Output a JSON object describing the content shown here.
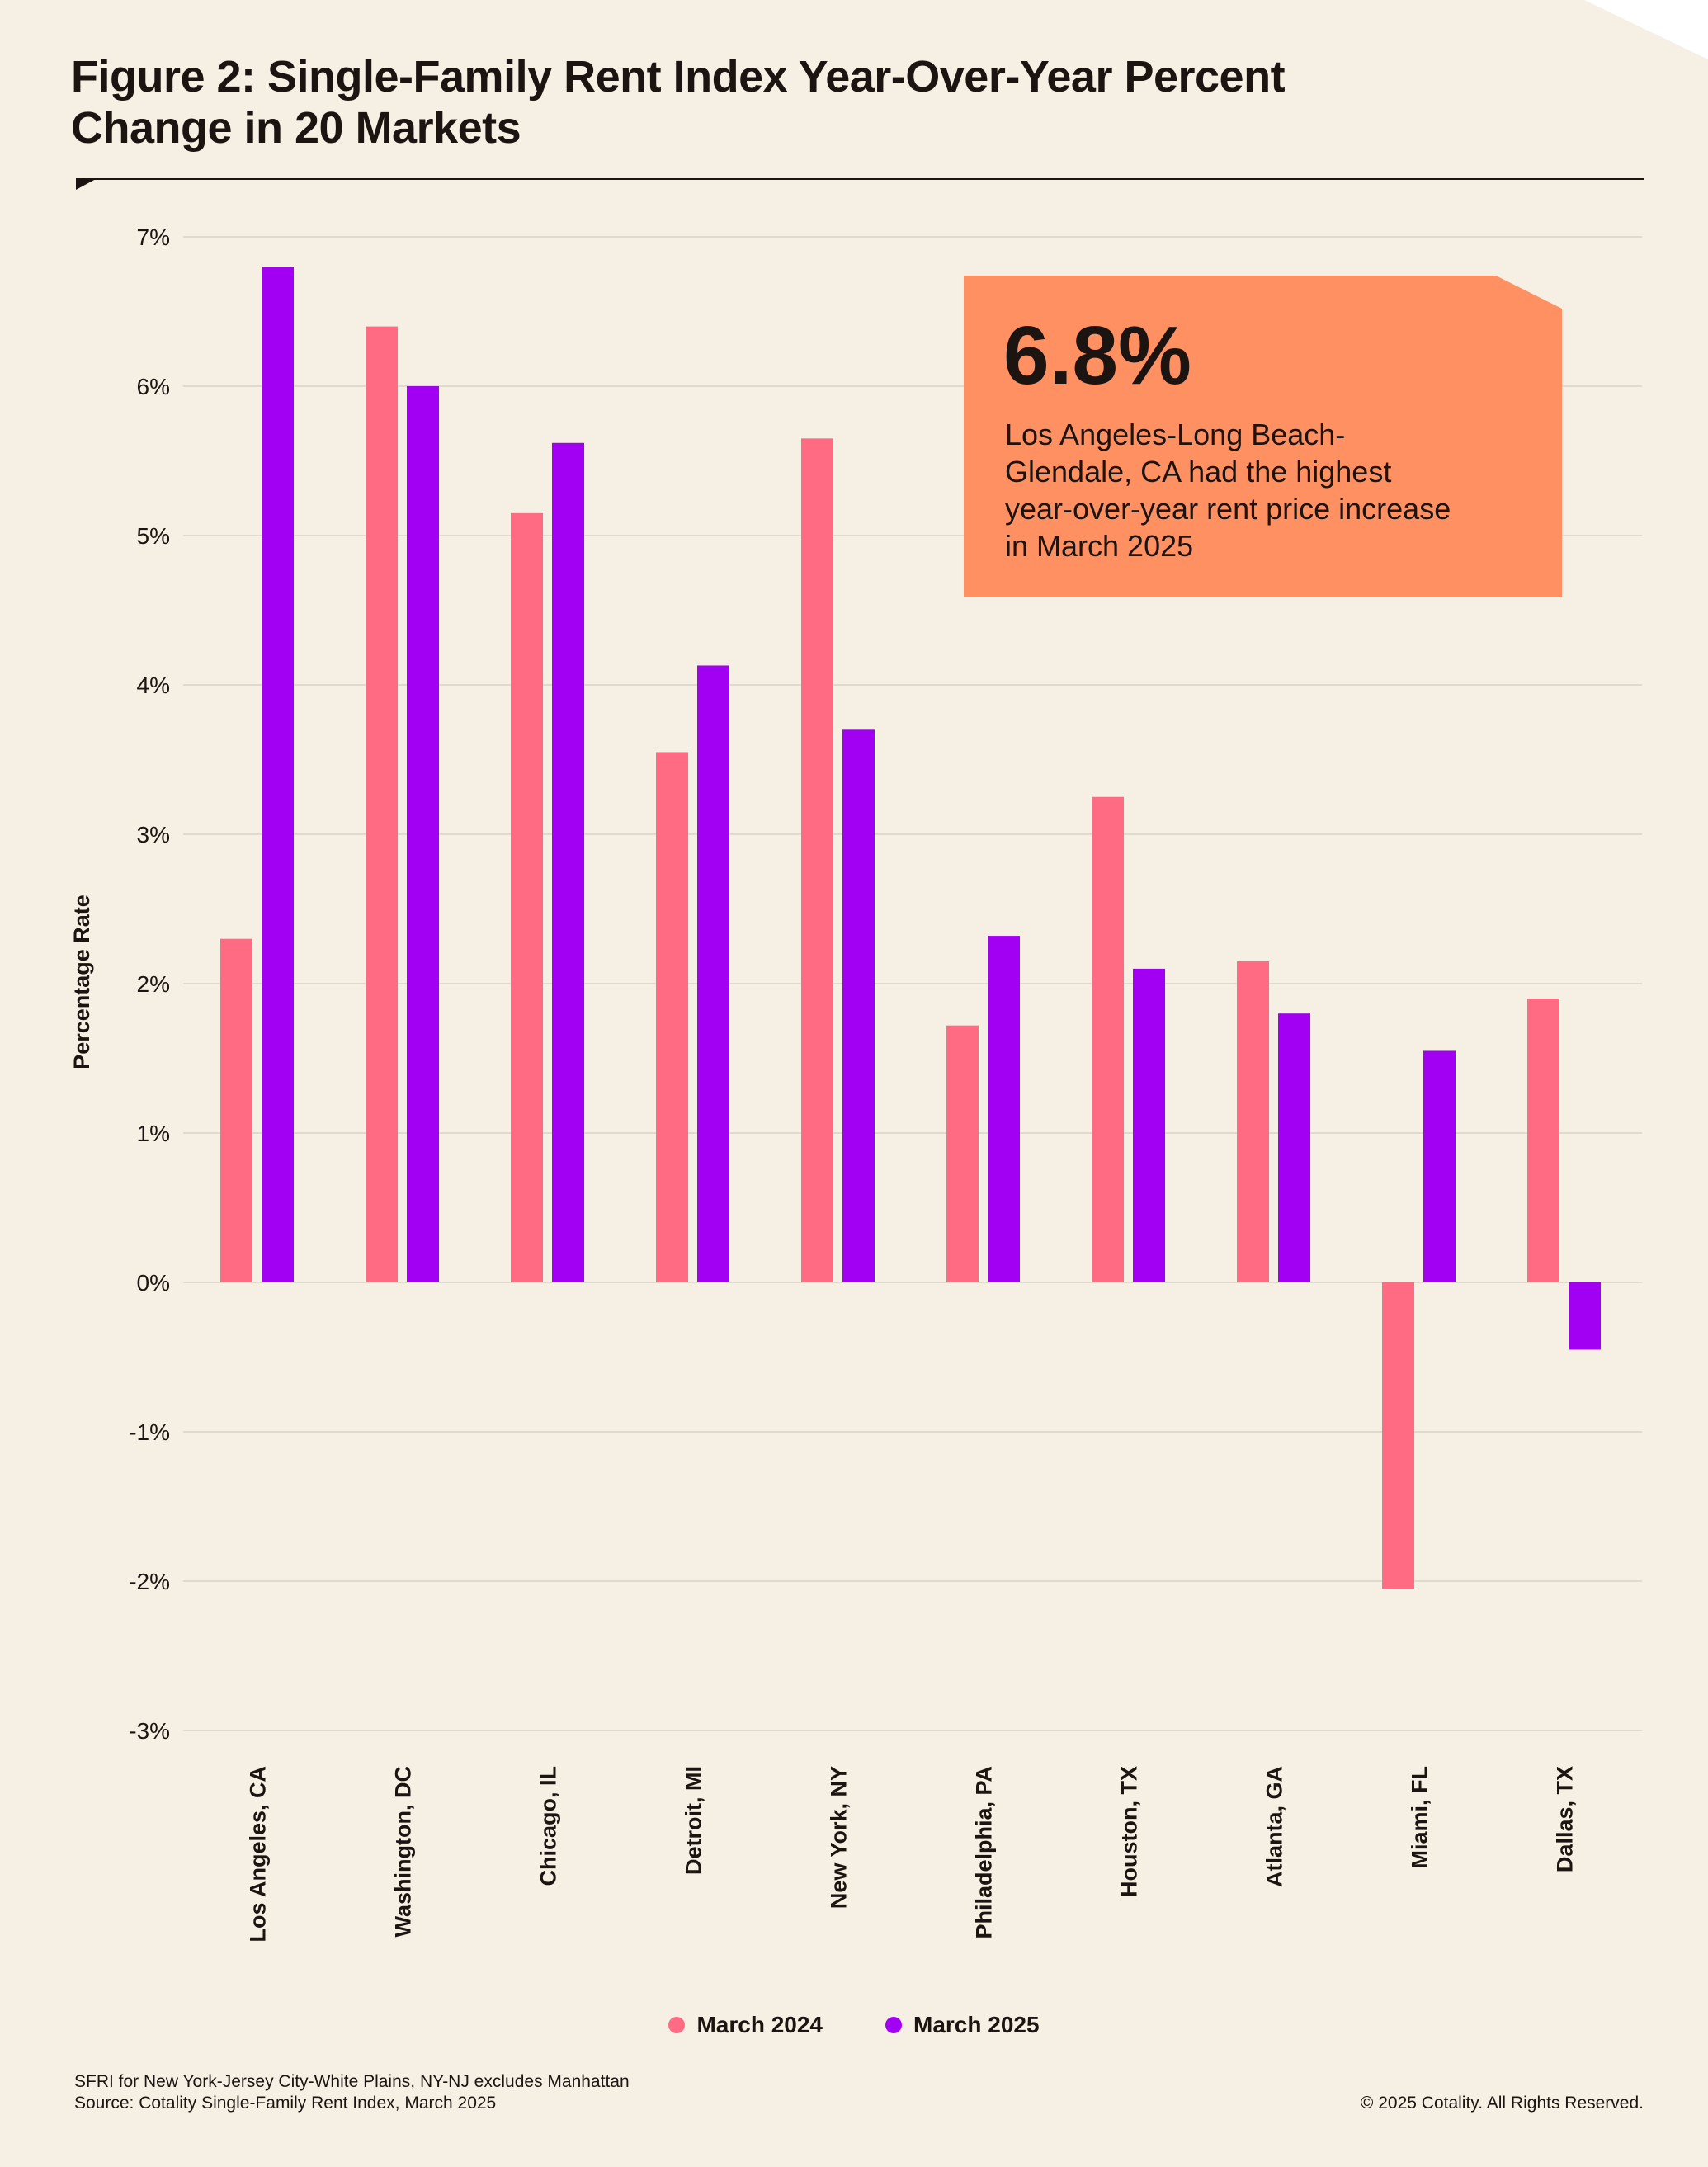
{
  "title": "Figure 2: Single-Family Rent Index Year-Over-Year Percent Change in 20 Markets",
  "callout": {
    "value": "6.8%",
    "text": "Los Angeles-Long Beach-Glendale, CA had the highest year-over-year rent price increase in March 2025"
  },
  "footnote": {
    "line1": "SFRI for New York-Jersey City-White Plains, NY-NJ excludes Manhattan",
    "line2": "Source: Cotality Single-Family Rent Index, March 2025"
  },
  "copyright": "© 2025 Cotality. All Rights Reserved.",
  "colors": {
    "background": "#f6efe3",
    "march_2024": "#ff6b83",
    "march_2025": "#a100f2",
    "callout": "#ff9062",
    "text": "#1c1410",
    "grid": "#d9d2c6"
  },
  "chart_data": {
    "type": "bar",
    "title": "Figure 2: Single-Family Rent Index Year-Over-Year Percent Change in 20 Markets",
    "xlabel": "",
    "ylabel": "Percentage Rate",
    "ylim": [
      -3,
      7
    ],
    "yticks": [
      7,
      6,
      5,
      4,
      3,
      2,
      1,
      0,
      -1,
      -2,
      -3
    ],
    "ytick_labels": [
      "7%",
      "6%",
      "5%",
      "4%",
      "3%",
      "2%",
      "1%",
      "0%",
      "-1%",
      "-2%",
      "-3%"
    ],
    "grid": true,
    "legend": "bottom-center",
    "categories": [
      "Los Angeles, CA",
      "Washington, DC",
      "Chicago, IL",
      "Detroit, MI",
      "New York, NY",
      "Philadelphia, PA",
      "Houston, TX",
      "Atlanta, GA",
      "Miami, FL",
      "Dallas, TX"
    ],
    "series": [
      {
        "name": "March 2024",
        "color": "#ff6b83",
        "values": [
          2.3,
          6.4,
          5.15,
          3.55,
          5.65,
          1.72,
          3.25,
          2.15,
          -2.05,
          1.9
        ]
      },
      {
        "name": "March 2025",
        "color": "#a100f2",
        "values": [
          6.8,
          6.0,
          5.62,
          4.13,
          3.7,
          2.32,
          2.1,
          1.8,
          1.55,
          -0.45
        ]
      }
    ]
  }
}
